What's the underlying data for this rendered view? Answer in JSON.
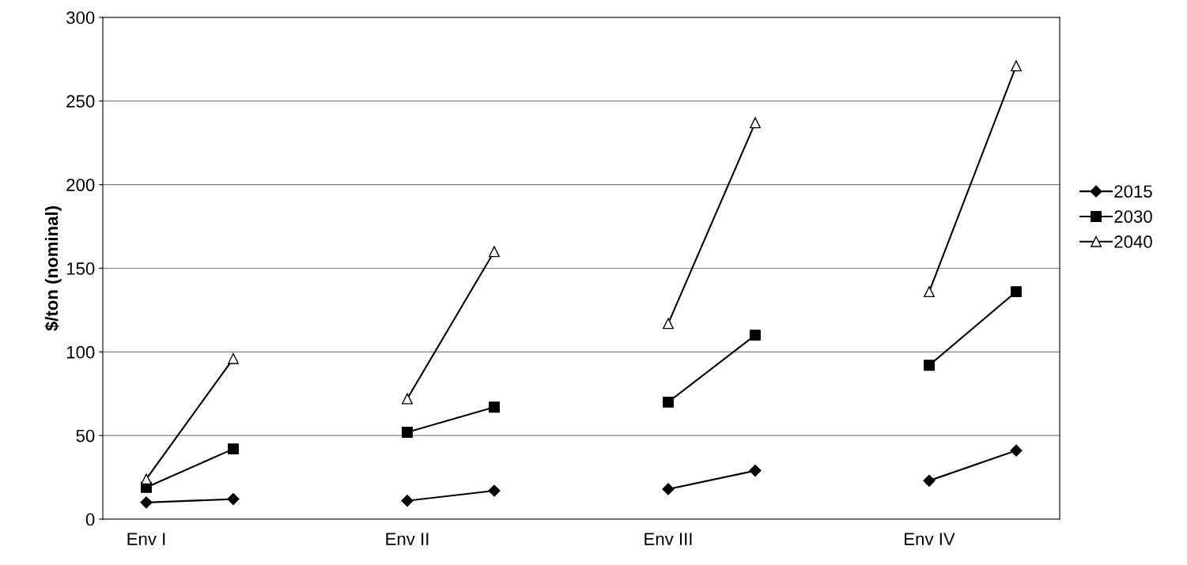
{
  "chart_data": {
    "type": "line",
    "ylabel": "$/ton (nominal)",
    "categories": [
      "Env I",
      null,
      null,
      "Env II",
      null,
      null,
      "Env III",
      null,
      null,
      "Env IV",
      null
    ],
    "series": [
      {
        "name": "2015",
        "color": "#000000",
        "marker": "diamond",
        "values": [
          10,
          12,
          null,
          11,
          17,
          null,
          18,
          29,
          null,
          23,
          41
        ]
      },
      {
        "name": "2030",
        "color": "#000000",
        "marker": "square",
        "values": [
          19,
          42,
          null,
          52,
          67,
          null,
          70,
          110,
          null,
          92,
          136
        ]
      },
      {
        "name": "2040",
        "color": "#000000",
        "marker": "triangle",
        "values": [
          24,
          96,
          null,
          72,
          160,
          null,
          117,
          237,
          null,
          136,
          271
        ]
      }
    ],
    "ylim": [
      0,
      300
    ],
    "yticks": [
      0,
      50,
      100,
      150,
      200,
      250,
      300
    ],
    "grid": "y",
    "legend": "right",
    "line_style": "solid"
  }
}
